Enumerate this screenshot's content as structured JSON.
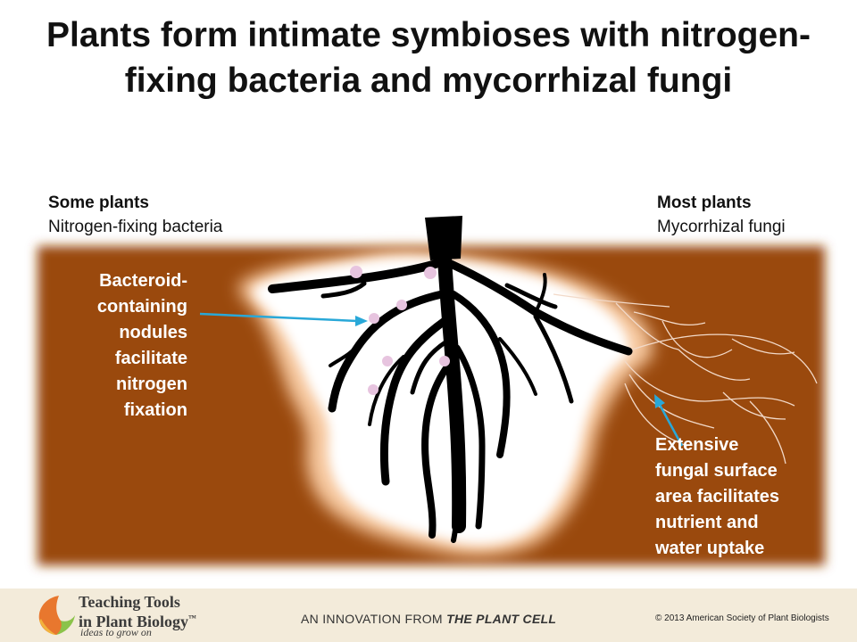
{
  "title": "Plants form intimate symbioses with nitrogen-fixing bacteria and mycorrhizal fungi",
  "left_label": {
    "heading": "Some plants",
    "sub": "Nitrogen-fixing bacteria"
  },
  "right_label": {
    "heading": "Most plants",
    "sub": "Mycorrhizal fungi"
  },
  "callout_left": [
    "Bacteroid-",
    "containing",
    "nodules",
    "facilitate",
    "nitrogen",
    "fixation"
  ],
  "callout_right": [
    "Extensive",
    "fungal surface",
    "area facilitates",
    "nutrient and",
    "water uptake"
  ],
  "footer": {
    "brand_line1": "Teaching Tools",
    "brand_line2": "in Plant Biology",
    "trademark": "™",
    "tagline": "ideas to grow on",
    "innovation_prefix": "AN INNOVATION FROM",
    "innovation_journal": "THE PLANT CELL",
    "copyright": "© 2013 American Society of Plant Biologists"
  },
  "colors": {
    "soil": "#9a4a0f",
    "root_zone": "#ffffff",
    "root_halo": "#f7c9a0",
    "root": "#000000",
    "nodule": "#e7c4df",
    "arrow": "#29a8d8",
    "hyphae": "#f2d9c8",
    "footer_bg": "#f3ebda"
  }
}
